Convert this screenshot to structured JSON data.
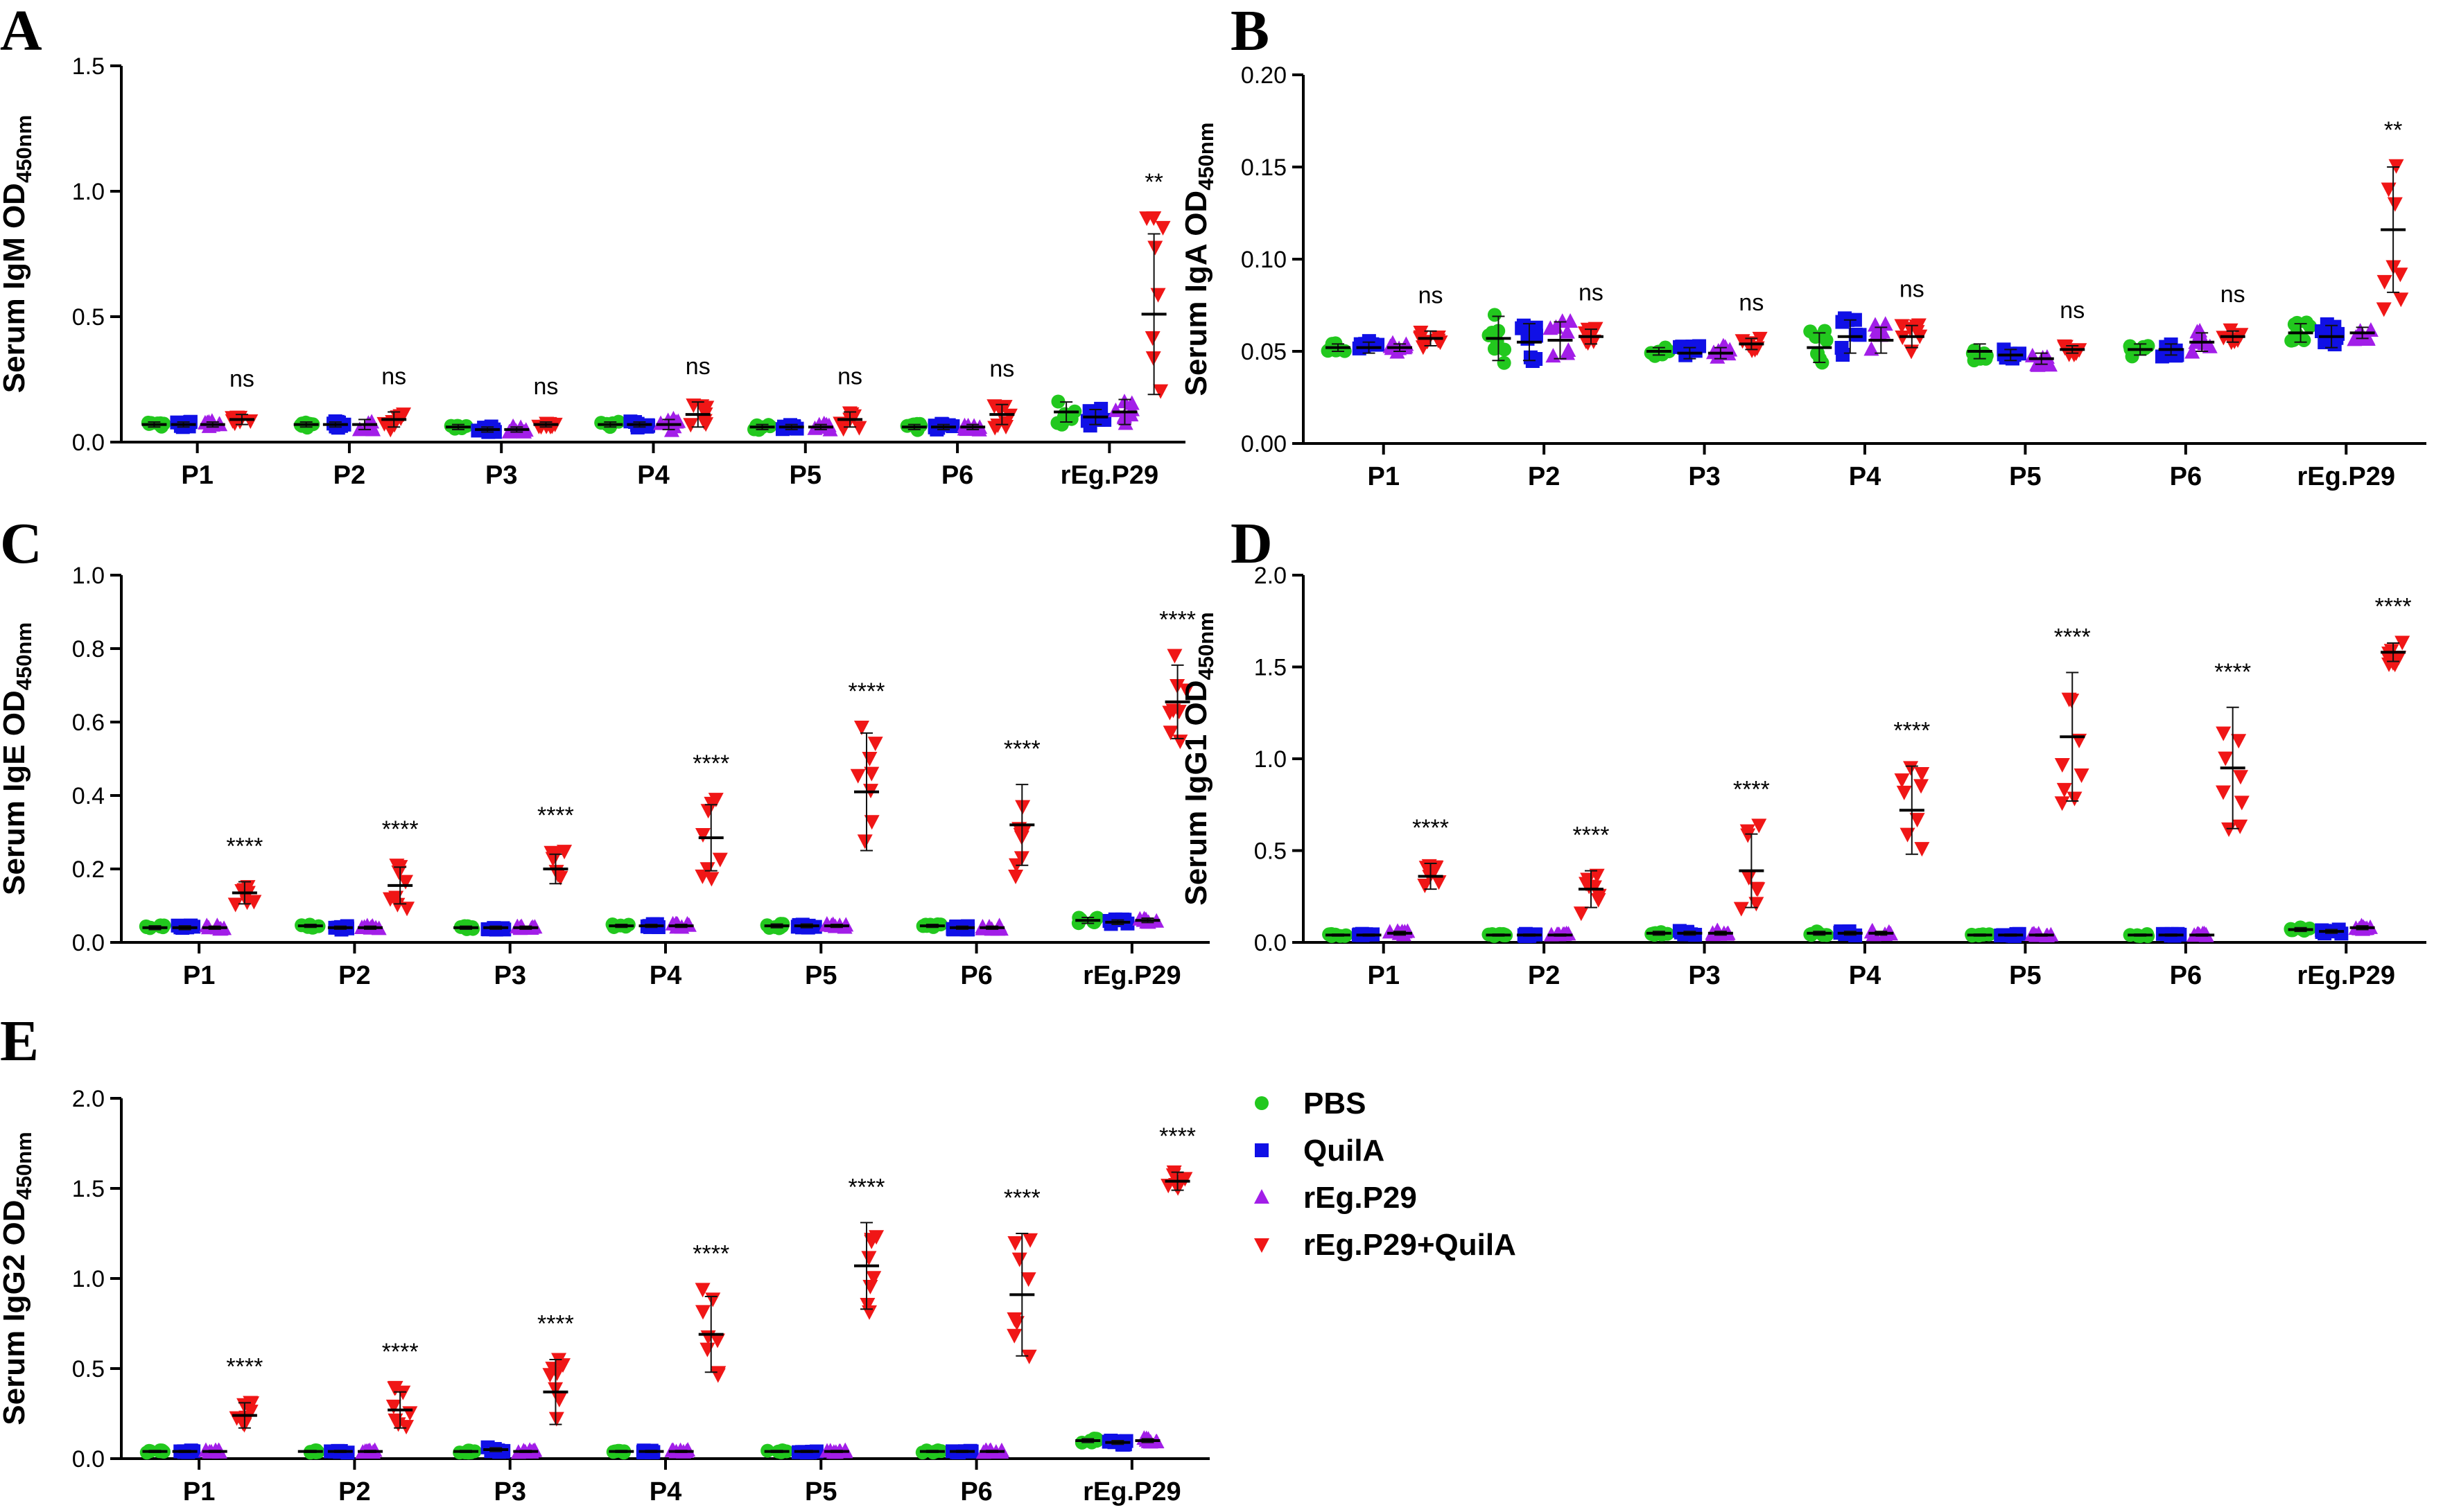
{
  "colors": {
    "PBS": "#22c81e",
    "QuilA": "#1010e6",
    "rEg.P29": "#a21ee8",
    "rEg.P29+QuilA": "#f01616"
  },
  "legend": {
    "entries": [
      "PBS",
      "QuilA",
      "rEg.P29",
      "rEg.P29+QuilA"
    ]
  },
  "chart_data": [
    {
      "panel": "A",
      "type": "scatter",
      "ylabel_main": "Serum IgM OD",
      "ylabel_sub": "450nm",
      "ylim": [
        0,
        1.5
      ],
      "yticks": [
        "0.0",
        "0.5",
        "1.0",
        "1.5"
      ],
      "categories": [
        "P1",
        "P2",
        "P3",
        "P4",
        "P5",
        "P6",
        "rEg.P29"
      ],
      "significance": [
        "ns",
        "ns",
        "ns",
        "ns",
        "ns",
        "ns",
        "**"
      ],
      "series": [
        {
          "name": "PBS",
          "means": [
            0.07,
            0.07,
            0.06,
            0.07,
            0.06,
            0.06,
            0.12
          ],
          "sd": [
            0.01,
            0.01,
            0.01,
            0.01,
            0.01,
            0.01,
            0.04
          ]
        },
        {
          "name": "QuilA",
          "means": [
            0.07,
            0.07,
            0.05,
            0.07,
            0.06,
            0.06,
            0.1
          ],
          "sd": [
            0.01,
            0.01,
            0.01,
            0.01,
            0.01,
            0.01,
            0.03
          ]
        },
        {
          "name": "rEg.P29",
          "means": [
            0.07,
            0.07,
            0.05,
            0.07,
            0.06,
            0.06,
            0.12
          ],
          "sd": [
            0.01,
            0.02,
            0.01,
            0.02,
            0.01,
            0.01,
            0.05
          ]
        },
        {
          "name": "rEg.P29+QuilA",
          "means": [
            0.09,
            0.09,
            0.07,
            0.11,
            0.09,
            0.11,
            0.51
          ],
          "sd": [
            0.02,
            0.03,
            0.01,
            0.05,
            0.03,
            0.04,
            0.32
          ]
        }
      ]
    },
    {
      "panel": "B",
      "type": "scatter",
      "ylabel_main": "Serum IgA OD",
      "ylabel_sub": "450nm",
      "ylim": [
        0,
        0.2
      ],
      "yticks": [
        "0.00",
        "0.05",
        "0.10",
        "0.15",
        "0.20"
      ],
      "categories": [
        "P1",
        "P2",
        "P3",
        "P4",
        "P5",
        "P6",
        "rEg.P29"
      ],
      "significance": [
        "ns",
        "ns",
        "ns",
        "ns",
        "ns",
        "ns",
        "**"
      ],
      "series": [
        {
          "name": "PBS",
          "means": [
            0.052,
            0.057,
            0.05,
            0.052,
            0.05,
            0.051,
            0.06
          ],
          "sd": [
            0.002,
            0.012,
            0.002,
            0.008,
            0.004,
            0.003,
            0.005
          ]
        },
        {
          "name": "QuilA",
          "means": [
            0.052,
            0.055,
            0.049,
            0.058,
            0.048,
            0.051,
            0.058
          ],
          "sd": [
            0.003,
            0.01,
            0.003,
            0.009,
            0.003,
            0.003,
            0.006
          ]
        },
        {
          "name": "rEg.P29",
          "means": [
            0.052,
            0.056,
            0.049,
            0.056,
            0.046,
            0.055,
            0.06
          ],
          "sd": [
            0.002,
            0.01,
            0.003,
            0.007,
            0.003,
            0.005,
            0.003
          ]
        },
        {
          "name": "rEg.P29+QuilA",
          "means": [
            0.057,
            0.058,
            0.054,
            0.058,
            0.051,
            0.058,
            0.116
          ],
          "sd": [
            0.004,
            0.004,
            0.003,
            0.006,
            0.002,
            0.003,
            0.034
          ]
        }
      ]
    },
    {
      "panel": "C",
      "type": "scatter",
      "ylabel_main": "Serum IgE OD",
      "ylabel_sub": "450nm",
      "ylim": [
        0,
        1.0
      ],
      "yticks": [
        "0.0",
        "0.2",
        "0.4",
        "0.6",
        "0.8",
        "1.0"
      ],
      "categories": [
        "P1",
        "P2",
        "P3",
        "P4",
        "P5",
        "P6",
        "rEg.P29"
      ],
      "significance": [
        "****",
        "****",
        "****",
        "****",
        "****",
        "****",
        "****"
      ],
      "series": [
        {
          "name": "PBS",
          "means": [
            0.04,
            0.045,
            0.04,
            0.045,
            0.045,
            0.045,
            0.06
          ],
          "sd": [
            0.005,
            0.004,
            0.004,
            0.004,
            0.005,
            0.004,
            0.008
          ]
        },
        {
          "name": "QuilA",
          "means": [
            0.04,
            0.04,
            0.04,
            0.045,
            0.045,
            0.04,
            0.055
          ],
          "sd": [
            0.005,
            0.004,
            0.004,
            0.004,
            0.005,
            0.004,
            0.006
          ]
        },
        {
          "name": "rEg.P29",
          "means": [
            0.04,
            0.04,
            0.04,
            0.045,
            0.045,
            0.04,
            0.06
          ],
          "sd": [
            0.004,
            0.004,
            0.004,
            0.004,
            0.004,
            0.004,
            0.006
          ]
        },
        {
          "name": "rEg.P29+QuilA",
          "means": [
            0.135,
            0.155,
            0.2,
            0.285,
            0.41,
            0.32,
            0.655
          ],
          "sd": [
            0.03,
            0.05,
            0.04,
            0.09,
            0.16,
            0.11,
            0.1
          ]
        }
      ]
    },
    {
      "panel": "D",
      "type": "scatter",
      "ylabel_main": "Serum IgG1 OD",
      "ylabel_sub": "450nm",
      "ylim": [
        0,
        2.0
      ],
      "yticks": [
        "0.0",
        "0.5",
        "1.0",
        "1.5",
        "2.0"
      ],
      "categories": [
        "P1",
        "P2",
        "P3",
        "P4",
        "P5",
        "P6",
        "rEg.P29"
      ],
      "significance": [
        "****",
        "****",
        "****",
        "****",
        "****",
        "****",
        "****"
      ],
      "series": [
        {
          "name": "PBS",
          "means": [
            0.04,
            0.04,
            0.05,
            0.05,
            0.04,
            0.04,
            0.07
          ],
          "sd": [
            0.005,
            0.005,
            0.01,
            0.01,
            0.005,
            0.005,
            0.01
          ]
        },
        {
          "name": "QuilA",
          "means": [
            0.04,
            0.04,
            0.05,
            0.05,
            0.04,
            0.04,
            0.06
          ],
          "sd": [
            0.005,
            0.005,
            0.01,
            0.01,
            0.005,
            0.005,
            0.01
          ]
        },
        {
          "name": "rEg.P29",
          "means": [
            0.05,
            0.04,
            0.05,
            0.05,
            0.04,
            0.04,
            0.08
          ],
          "sd": [
            0.01,
            0.005,
            0.01,
            0.01,
            0.005,
            0.005,
            0.01
          ]
        },
        {
          "name": "rEg.P29+QuilA",
          "means": [
            0.36,
            0.29,
            0.39,
            0.72,
            1.12,
            0.95,
            1.58
          ],
          "sd": [
            0.07,
            0.1,
            0.2,
            0.24,
            0.35,
            0.33,
            0.05
          ]
        }
      ]
    },
    {
      "panel": "E",
      "type": "scatter",
      "ylabel_main": "Serum IgG2 OD",
      "ylabel_sub": "450nm",
      "ylim": [
        0,
        2.0
      ],
      "yticks": [
        "0.0",
        "0.5",
        "1.0",
        "1.5",
        "2.0"
      ],
      "categories": [
        "P1",
        "P2",
        "P3",
        "P4",
        "P5",
        "P6",
        "rEg.P29"
      ],
      "significance": [
        "****",
        "****",
        "****",
        "****",
        "****",
        "****",
        "****"
      ],
      "series": [
        {
          "name": "PBS",
          "means": [
            0.04,
            0.04,
            0.04,
            0.04,
            0.04,
            0.04,
            0.1
          ],
          "sd": [
            0.005,
            0.005,
            0.005,
            0.005,
            0.005,
            0.005,
            0.01
          ]
        },
        {
          "name": "QuilA",
          "means": [
            0.04,
            0.04,
            0.05,
            0.04,
            0.04,
            0.04,
            0.09
          ],
          "sd": [
            0.005,
            0.005,
            0.01,
            0.005,
            0.005,
            0.005,
            0.01
          ]
        },
        {
          "name": "rEg.P29",
          "means": [
            0.04,
            0.04,
            0.04,
            0.04,
            0.04,
            0.04,
            0.1
          ],
          "sd": [
            0.005,
            0.005,
            0.005,
            0.005,
            0.005,
            0.005,
            0.01
          ]
        },
        {
          "name": "rEg.P29+QuilA",
          "means": [
            0.24,
            0.27,
            0.37,
            0.69,
            1.07,
            0.91,
            1.54
          ],
          "sd": [
            0.07,
            0.1,
            0.18,
            0.21,
            0.24,
            0.34,
            0.05
          ]
        }
      ]
    }
  ]
}
